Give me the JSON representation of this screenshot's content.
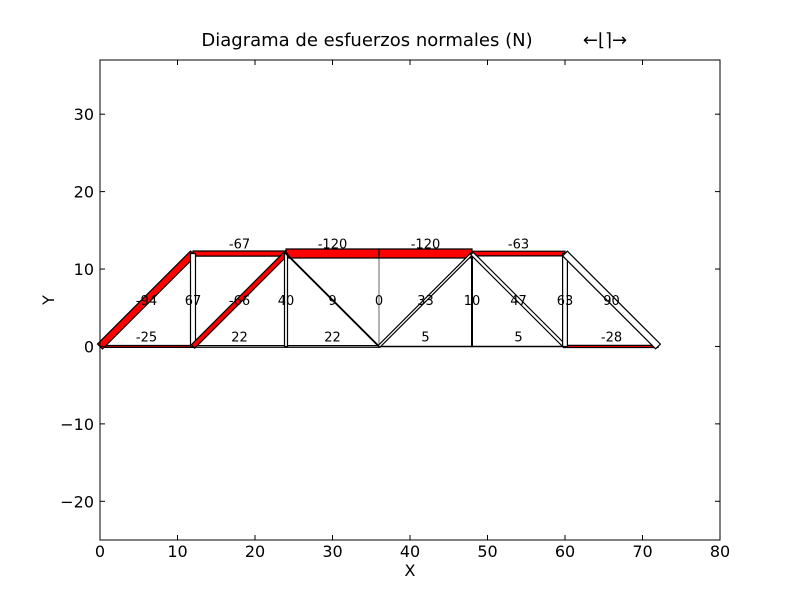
{
  "title": "Diagrama de esfuerzos normales (N)",
  "title_symbol": "←⌊⌉→",
  "chart_data": {
    "type": "truss_diagram",
    "xlabel": "X",
    "ylabel": "Y",
    "xlim": [
      0,
      80
    ],
    "ylim": [
      -25,
      37
    ],
    "xticks": [
      0,
      10,
      20,
      30,
      40,
      50,
      60,
      70,
      80
    ],
    "yticks": [
      -20,
      -10,
      0,
      10,
      20,
      30
    ],
    "grid": false,
    "colors": {
      "compression": "#ff0000",
      "outline": "#000000"
    },
    "members": [
      {
        "from": [
          0,
          0
        ],
        "to": [
          12,
          0
        ],
        "force": -25,
        "label": "-25"
      },
      {
        "from": [
          12,
          0
        ],
        "to": [
          24,
          0
        ],
        "force": 22,
        "label": "22"
      },
      {
        "from": [
          24,
          0
        ],
        "to": [
          36,
          0
        ],
        "force": 22,
        "label": "22"
      },
      {
        "from": [
          36,
          0
        ],
        "to": [
          48,
          0
        ],
        "force": 5,
        "label": "5"
      },
      {
        "from": [
          48,
          0
        ],
        "to": [
          60,
          0
        ],
        "force": 5,
        "label": "5"
      },
      {
        "from": [
          60,
          0
        ],
        "to": [
          72,
          0
        ],
        "force": -28,
        "label": "-28"
      },
      {
        "from": [
          12,
          12
        ],
        "to": [
          24,
          12
        ],
        "force": -67,
        "label": "-67"
      },
      {
        "from": [
          24,
          12
        ],
        "to": [
          36,
          12
        ],
        "force": -120,
        "label": "-120"
      },
      {
        "from": [
          36,
          12
        ],
        "to": [
          48,
          12
        ],
        "force": -120,
        "label": "-120"
      },
      {
        "from": [
          48,
          12
        ],
        "to": [
          60,
          12
        ],
        "force": -63,
        "label": "-63"
      },
      {
        "from": [
          0,
          0
        ],
        "to": [
          12,
          12
        ],
        "force": -94,
        "label": "-94"
      },
      {
        "from": [
          12,
          0
        ],
        "to": [
          12,
          12
        ],
        "force": 67,
        "label": "67"
      },
      {
        "from": [
          12,
          0
        ],
        "to": [
          24,
          12
        ],
        "force": -66,
        "label": "-66"
      },
      {
        "from": [
          24,
          0
        ],
        "to": [
          24,
          12
        ],
        "force": 40,
        "label": "40"
      },
      {
        "from": [
          24,
          12
        ],
        "to": [
          36,
          0
        ],
        "force": 9,
        "label": "9"
      },
      {
        "from": [
          36,
          0
        ],
        "to": [
          36,
          12
        ],
        "force": 0,
        "label": "0"
      },
      {
        "from": [
          36,
          0
        ],
        "to": [
          48,
          12
        ],
        "force": 33,
        "label": "33"
      },
      {
        "from": [
          48,
          0
        ],
        "to": [
          48,
          12
        ],
        "force": 10,
        "label": "10"
      },
      {
        "from": [
          48,
          12
        ],
        "to": [
          60,
          0
        ],
        "force": 47,
        "label": "47"
      },
      {
        "from": [
          60,
          0
        ],
        "to": [
          60,
          12
        ],
        "force": 63,
        "label": "63"
      },
      {
        "from": [
          60,
          12
        ],
        "to": [
          72,
          0
        ],
        "force": 90,
        "label": "90"
      }
    ]
  }
}
